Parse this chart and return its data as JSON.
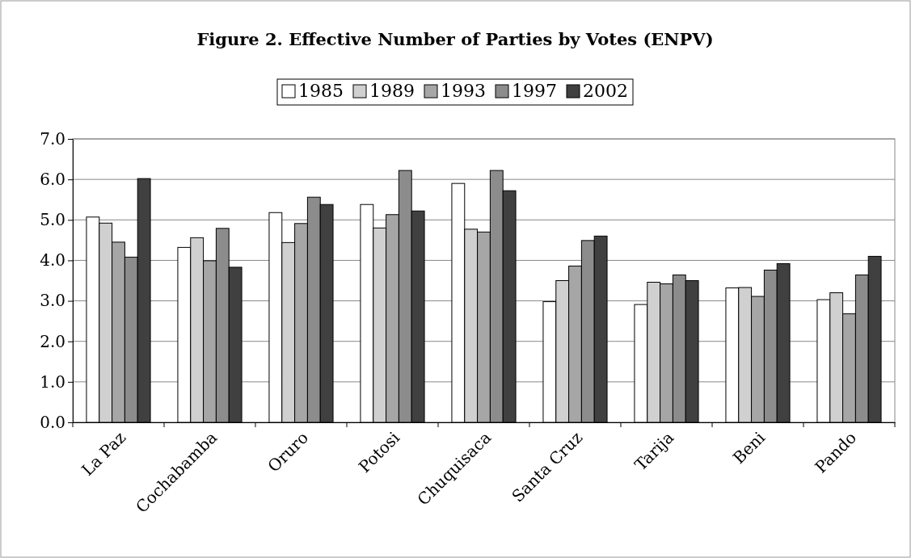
{
  "chart_data": {
    "type": "bar",
    "title": "Figure 2. Effective Number of Parties by Votes (ENPV)",
    "categories": [
      "La Paz",
      "Cochabamba",
      "Oruro",
      "Potosi",
      "Chuquisaca",
      "Santa Cruz",
      "Tarija",
      "Beni",
      "Pando"
    ],
    "series": [
      {
        "name": "1985",
        "color": "#ffffff",
        "values": [
          5.07,
          4.32,
          5.18,
          5.38,
          5.9,
          2.98,
          2.91,
          3.32,
          3.03
        ]
      },
      {
        "name": "1989",
        "color": "#d0d0d0",
        "values": [
          4.92,
          4.56,
          4.44,
          4.8,
          4.77,
          3.5,
          3.46,
          3.33,
          3.2
        ]
      },
      {
        "name": "1993",
        "color": "#a6a6a6",
        "values": [
          4.45,
          3.99,
          4.91,
          5.13,
          4.7,
          3.86,
          3.42,
          3.11,
          2.68
        ]
      },
      {
        "name": "1997",
        "color": "#8c8c8c",
        "values": [
          4.08,
          4.79,
          5.56,
          6.22,
          6.22,
          4.49,
          3.64,
          3.76,
          3.64
        ]
      },
      {
        "name": "2002",
        "color": "#404040",
        "values": [
          6.02,
          3.83,
          5.38,
          5.22,
          5.72,
          4.6,
          3.5,
          3.92,
          4.1
        ]
      }
    ],
    "ylim": [
      0,
      7
    ],
    "yticks": [
      {
        "value": 0,
        "label": "0.0"
      },
      {
        "value": 1,
        "label": "1.0"
      },
      {
        "value": 2,
        "label": "2.0"
      },
      {
        "value": 3,
        "label": "3.0"
      },
      {
        "value": 4,
        "label": "4.0"
      },
      {
        "value": 5,
        "label": "5.0"
      },
      {
        "value": 6,
        "label": "6.0"
      },
      {
        "value": 7,
        "label": "7.0"
      }
    ],
    "grid": "y",
    "legend": "top"
  }
}
